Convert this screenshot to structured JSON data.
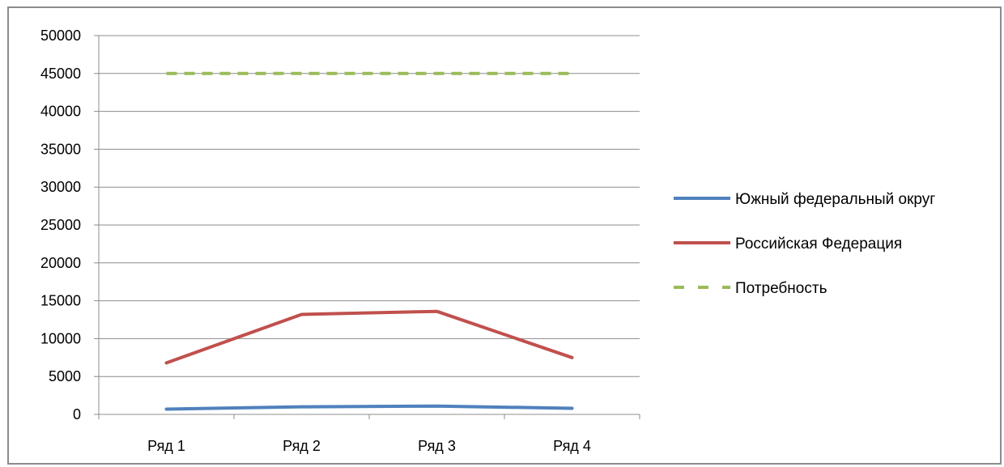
{
  "chart_data": {
    "type": "line",
    "title": "",
    "xlabel": "",
    "ylabel": "",
    "categories": [
      "Ряд 1",
      "Ряд 2",
      "Ряд 3",
      "Ряд 4"
    ],
    "ylim": [
      0,
      50000
    ],
    "yticks": [
      0,
      5000,
      10000,
      15000,
      20000,
      25000,
      30000,
      35000,
      40000,
      45000,
      50000
    ],
    "grid": true,
    "legend_position": "right",
    "series": [
      {
        "name": "Южный федеральный округ",
        "values": [
          700,
          1000,
          1100,
          800
        ],
        "color": "#4f81bd",
        "dashed": false
      },
      {
        "name": "Российская Федерация",
        "values": [
          6800,
          13200,
          13600,
          7500
        ],
        "color": "#c0504d",
        "dashed": false
      },
      {
        "name": "Потребность",
        "values": [
          45000,
          45000,
          45000,
          45000
        ],
        "color": "#9bbb59",
        "dashed": true
      }
    ]
  }
}
